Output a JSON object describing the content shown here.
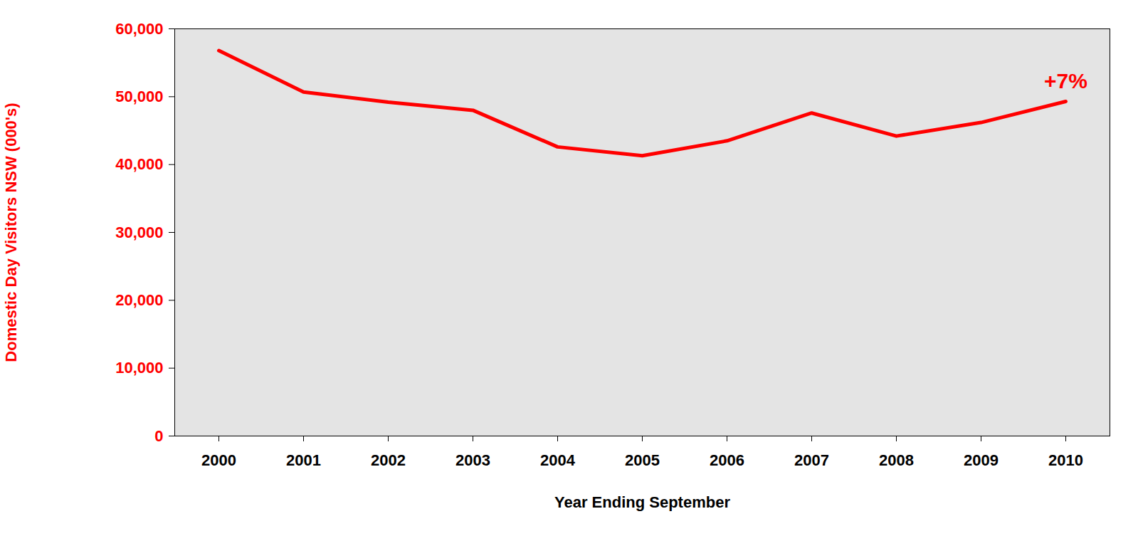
{
  "chart_data": {
    "type": "line",
    "x_label": "Year Ending September",
    "y_label": "Domestic Day Visitors NSW (000's)",
    "categories": [
      "2000",
      "2001",
      "2002",
      "2003",
      "2004",
      "2005",
      "2006",
      "2007",
      "2008",
      "2009",
      "2010"
    ],
    "values": [
      56800,
      50700,
      49200,
      48000,
      42600,
      41300,
      43500,
      47600,
      44200,
      46200,
      49300
    ],
    "color": "#ff0000",
    "ylim": [
      0,
      60000
    ],
    "yticks": [
      0,
      {
        "value": 10000,
        "label": "10,000"
      },
      {
        "value": 20000,
        "label": "20,000"
      },
      {
        "value": 30000,
        "label": "30,000"
      },
      {
        "value": 40000,
        "label": "40,000"
      },
      {
        "value": 50000,
        "label": "50,000"
      },
      {
        "value": 60000,
        "label": "60,000"
      }
    ],
    "grid": false,
    "annotations": [
      {
        "text": "+7%",
        "x": "2010"
      }
    ]
  }
}
